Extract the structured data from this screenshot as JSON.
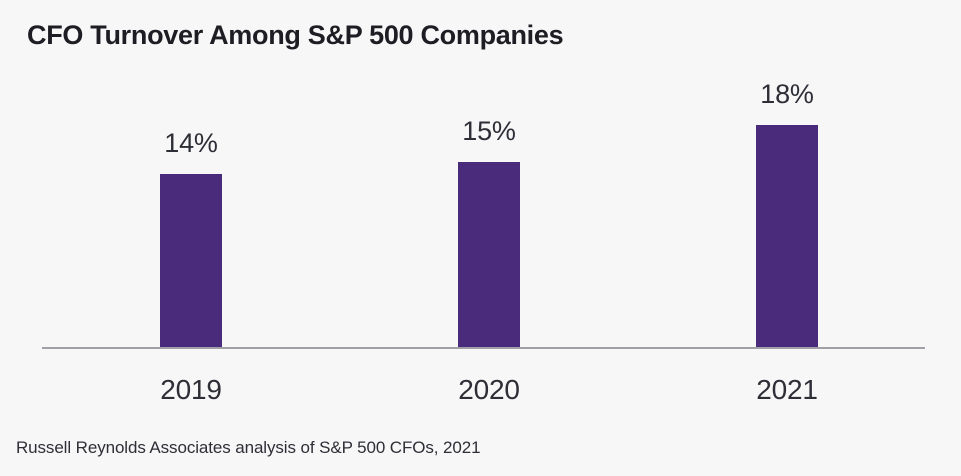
{
  "chart_data": {
    "type": "bar",
    "title": "CFO Turnover Among S&P 500 Companies",
    "categories": [
      "2019",
      "2020",
      "2021"
    ],
    "values": [
      14,
      15,
      18
    ],
    "value_labels": [
      "14%",
      "15%",
      "18%"
    ],
    "unit": "%",
    "source": "Russell Reynolds Associates analysis of S&P 500 CFOs, 2021",
    "xlabel": "",
    "ylabel": "",
    "ylim": [
      0,
      20
    ],
    "grid": false,
    "legend": false,
    "y_axis_visible": false,
    "baseline_axis_visible": true,
    "colors": {
      "bar": "#4a2a7a",
      "background": "#f7f7f8",
      "axis_line": "#a0a0a6",
      "title_text": "#1d1d23",
      "label_text": "#2e2e37"
    }
  }
}
